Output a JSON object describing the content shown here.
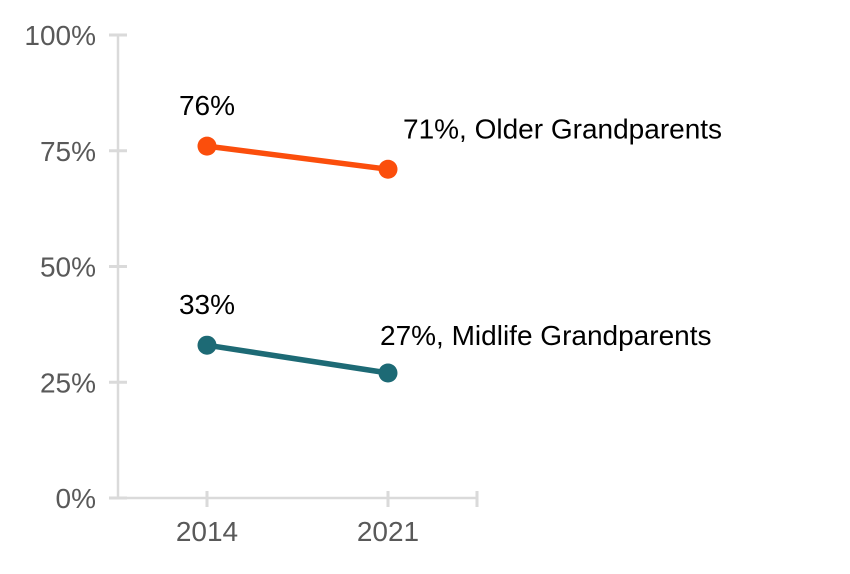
{
  "page": {
    "background_color": "#ffffff"
  },
  "chart_data": {
    "type": "line",
    "title": "",
    "xlabel": "",
    "ylabel": "",
    "categories": [
      "2014",
      "2021"
    ],
    "series": [
      {
        "name": "Older Grandparents",
        "values": [
          76,
          71
        ],
        "color": "#fb4e0c",
        "point_label": "76%",
        "end_label": "71%, Older Grandparents"
      },
      {
        "name": "Midlife Grandparents",
        "values": [
          33,
          27
        ],
        "color": "#1d6a75",
        "point_label": "33%",
        "end_label": "27%, Midlife Grandparents"
      }
    ],
    "ylim": [
      0,
      100
    ],
    "yticks": [
      0,
      25,
      50,
      75,
      100
    ],
    "ytick_labels": [
      "0%",
      "25%",
      "50%",
      "75%",
      "100%"
    ],
    "grid": false,
    "legend_position": "inline-end-of-line-labels",
    "axis_color": "#dadada",
    "tick_label_color": "#595959",
    "annotation_color": "#000000"
  }
}
